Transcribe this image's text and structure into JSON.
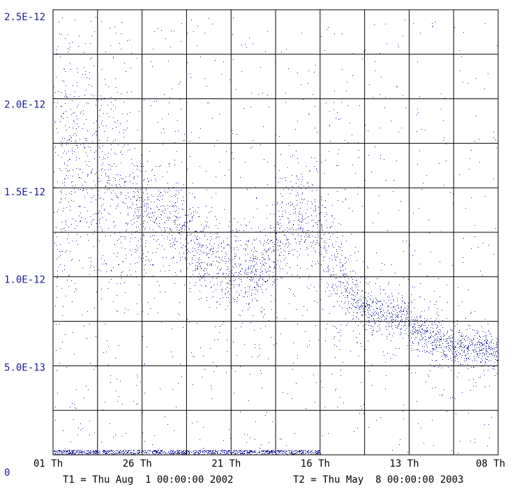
{
  "chart_data": {
    "type": "scatter",
    "title": "",
    "xlabel": "",
    "ylabel": "",
    "ylim": [
      0,
      2.5e-12
    ],
    "y_ticks": [
      {
        "label": "2.5E-12",
        "value": 2.5e-12
      },
      {
        "label": "2.0E-12",
        "value": 2e-12
      },
      {
        "label": "1.5E-12",
        "value": 1.5e-12
      },
      {
        "label": "1.0E-12",
        "value": 1e-12
      },
      {
        "label": "5.0E-13",
        "value": 5e-13
      }
    ],
    "y_origin_label": "0",
    "x_ticks": [
      {
        "label": "01 Th",
        "date": "2002-08-01"
      },
      {
        "label": "26 Th",
        "date": "2002-09-26"
      },
      {
        "label": "21 Th",
        "date": "2002-11-21"
      },
      {
        "label": "16 Th",
        "date": "2003-01-16"
      },
      {
        "label": "13 Th",
        "date": "2003-03-13"
      },
      {
        "label": "08 Th",
        "date": "2003-05-08"
      }
    ],
    "t1_label": "T1 = Thu Aug  1 00:00:00 2002",
    "t2_label": "T2 = Thu May  8 00:00:00 2003",
    "xlim": [
      "2002-08-01",
      "2003-05-08"
    ],
    "grid": true,
    "point_color": "#1a1a9c",
    "density_profile": [
      {
        "date": "2002-08-01",
        "center": 1.55e-12,
        "spread": 4e-13
      },
      {
        "date": "2002-08-15",
        "center": 1.7e-12,
        "spread": 3.5e-13
      },
      {
        "date": "2002-09-05",
        "center": 1.6e-12,
        "spread": 3e-13
      },
      {
        "date": "2002-09-26",
        "center": 1.35e-12,
        "spread": 1.5e-13
      },
      {
        "date": "2002-10-15",
        "center": 1.35e-12,
        "spread": 1.2e-13
      },
      {
        "date": "2002-11-01",
        "center": 1.15e-12,
        "spread": 1.2e-13
      },
      {
        "date": "2002-11-21",
        "center": 1.05e-12,
        "spread": 1.2e-13
      },
      {
        "date": "2002-12-10",
        "center": 1.05e-12,
        "spread": 1e-13
      },
      {
        "date": "2003-01-01",
        "center": 1.35e-12,
        "spread": 1.2e-13
      },
      {
        "date": "2003-01-16",
        "center": 1.25e-12,
        "spread": 1.5e-13
      },
      {
        "date": "2003-02-10",
        "center": 8.5e-13,
        "spread": 6e-14
      },
      {
        "date": "2003-03-13",
        "center": 7.5e-13,
        "spread": 6e-14
      },
      {
        "date": "2003-04-05",
        "center": 6.2e-13,
        "spread": 5e-14
      },
      {
        "date": "2003-05-08",
        "center": 6e-13,
        "spread": 4e-14
      }
    ]
  }
}
